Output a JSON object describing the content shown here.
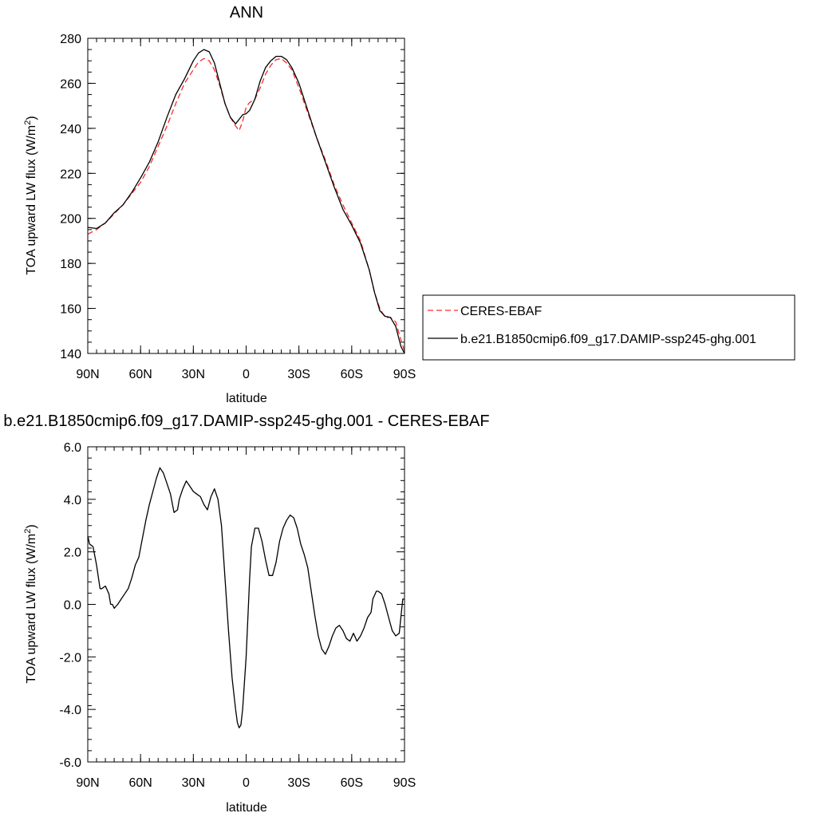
{
  "chart_data": [
    {
      "type": "line",
      "title": "ANN",
      "xlabel": "latitude",
      "ylabel": "TOA upward LW flux (W/m",
      "ylabel_sup": "2",
      "ylabel_close": ")",
      "xlim": [
        90,
        -90
      ],
      "ylim": [
        140,
        280
      ],
      "xticks": [
        {
          "value": 90,
          "label": "90N"
        },
        {
          "value": 60,
          "label": "60N"
        },
        {
          "value": 30,
          "label": "30N"
        },
        {
          "value": 0,
          "label": "0"
        },
        {
          "value": -30,
          "label": "30S"
        },
        {
          "value": -60,
          "label": "60S"
        },
        {
          "value": -90,
          "label": "90S"
        }
      ],
      "yticks": [
        {
          "value": 140,
          "label": "140"
        },
        {
          "value": 160,
          "label": "160"
        },
        {
          "value": 180,
          "label": "180"
        },
        {
          "value": 200,
          "label": "200"
        },
        {
          "value": 220,
          "label": "220"
        },
        {
          "value": 240,
          "label": "240"
        },
        {
          "value": 260,
          "label": "260"
        },
        {
          "value": 280,
          "label": "280"
        }
      ],
      "grid": false,
      "legend_position": "right",
      "series": [
        {
          "name": "CERES-EBAF",
          "color": "#ff2a2a",
          "dash": true,
          "x": [
            90,
            85,
            80,
            75,
            70,
            65,
            60,
            55,
            50,
            45,
            40,
            35,
            30,
            27,
            24,
            21,
            18,
            15,
            12,
            9,
            6,
            4,
            2,
            0,
            -2,
            -5,
            -8,
            -11,
            -14,
            -17,
            -20,
            -23,
            -26,
            -30,
            -35,
            -40,
            -45,
            -50,
            -55,
            -60,
            -65,
            -70,
            -73,
            -76,
            -79,
            -82,
            -85,
            -88,
            -90
          ],
          "y": [
            193,
            195,
            198,
            202,
            206,
            211,
            216,
            223,
            232,
            241,
            251,
            260,
            266,
            269.5,
            271,
            270,
            266,
            259,
            251,
            245,
            241,
            239,
            243,
            249.5,
            251.5,
            253,
            258,
            264,
            268,
            270.5,
            271,
            269,
            266,
            258,
            247,
            236,
            226,
            215,
            206,
            198,
            190,
            177,
            167,
            160,
            156,
            156,
            154,
            146,
            141
          ]
        },
        {
          "name": "b.e21.B1850cmip6.f09_g17.DAMIP-ssp245-ghg.001",
          "color": "#000000",
          "dash": false,
          "x": [
            90,
            85,
            80,
            75,
            70,
            65,
            60,
            55,
            50,
            45,
            40,
            35,
            30,
            27,
            24,
            21,
            18,
            15,
            12,
            9,
            6,
            4,
            2,
            0,
            -2,
            -5,
            -8,
            -11,
            -14,
            -17,
            -20,
            -23,
            -26,
            -30,
            -35,
            -40,
            -45,
            -50,
            -55,
            -60,
            -65,
            -70,
            -73,
            -76,
            -79,
            -82,
            -85,
            -88,
            -90
          ],
          "y": [
            196,
            195.5,
            198,
            202.5,
            206,
            211.5,
            218,
            225,
            234,
            245,
            255,
            262,
            270,
            273.5,
            275,
            274,
            269,
            260,
            251,
            245,
            242,
            244,
            246,
            246.5,
            248,
            253,
            261,
            267,
            270,
            272,
            272,
            270.5,
            267,
            260,
            248,
            236,
            225,
            214,
            204,
            197,
            189,
            177,
            167,
            159,
            156.5,
            156,
            152,
            143,
            140
          ]
        }
      ]
    },
    {
      "type": "line",
      "title": "b.e21.B1850cmip6.f09_g17.DAMIP-ssp245-ghg.001 - CERES-EBAF",
      "xlabel": "latitude",
      "ylabel": "TOA upward LW flux (W/m",
      "ylabel_sup": "2",
      "ylabel_close": ")",
      "xlim": [
        90,
        -90
      ],
      "ylim": [
        -6,
        6
      ],
      "xticks": [
        {
          "value": 90,
          "label": "90N"
        },
        {
          "value": 60,
          "label": "60N"
        },
        {
          "value": 30,
          "label": "30N"
        },
        {
          "value": 0,
          "label": "0"
        },
        {
          "value": -30,
          "label": "30S"
        },
        {
          "value": -60,
          "label": "60S"
        },
        {
          "value": -90,
          "label": "90S"
        }
      ],
      "yticks": [
        {
          "value": -6,
          "label": "-6.0"
        },
        {
          "value": -4,
          "label": "-4.0"
        },
        {
          "value": -2,
          "label": "-2.0"
        },
        {
          "value": 0,
          "label": "0.0"
        },
        {
          "value": 2,
          "label": "2.0"
        },
        {
          "value": 4,
          "label": "4.0"
        },
        {
          "value": 6,
          "label": "6.0"
        }
      ],
      "grid": false,
      "series": [
        {
          "color": "#000000",
          "dash": false,
          "x": [
            90,
            89,
            87,
            85,
            83,
            82,
            80,
            78,
            77,
            76,
            75,
            73,
            71,
            69,
            67,
            65,
            63,
            61,
            59,
            57,
            55,
            53,
            51,
            49,
            47,
            45,
            43,
            41,
            39,
            38,
            36,
            34,
            32,
            30,
            28,
            26,
            24,
            22,
            20,
            18,
            16,
            14,
            12,
            10,
            8,
            6,
            5,
            4,
            3,
            2,
            1,
            0,
            -1,
            -2,
            -3,
            -5,
            -7,
            -9,
            -11,
            -13,
            -15,
            -17,
            -19,
            -21,
            -23,
            -25,
            -27,
            -29,
            -31,
            -33,
            -35,
            -37,
            -39,
            -41,
            -43,
            -45,
            -47,
            -49,
            -51,
            -53,
            -55,
            -57,
            -59,
            -61,
            -63,
            -65,
            -67,
            -69,
            -71,
            -72,
            -74,
            -75,
            -77,
            -79,
            -81,
            -83,
            -85,
            -87,
            -89,
            -90
          ],
          "y": [
            2.6,
            2.3,
            2.2,
            1.5,
            0.6,
            0.6,
            0.7,
            0.4,
            0.0,
            0.0,
            -0.15,
            0.0,
            0.2,
            0.4,
            0.6,
            1.0,
            1.5,
            1.8,
            2.5,
            3.2,
            3.8,
            4.3,
            4.8,
            5.2,
            5.0,
            4.6,
            4.2,
            3.5,
            3.6,
            4.0,
            4.4,
            4.7,
            4.5,
            4.3,
            4.2,
            4.1,
            3.8,
            3.6,
            4.1,
            4.4,
            4.0,
            3.0,
            1.0,
            -1.0,
            -2.8,
            -4.0,
            -4.5,
            -4.7,
            -4.6,
            -4.0,
            -3.0,
            -2.0,
            -0.5,
            1.0,
            2.2,
            2.9,
            2.9,
            2.4,
            1.7,
            1.1,
            1.1,
            1.6,
            2.4,
            2.9,
            3.2,
            3.4,
            3.3,
            2.9,
            2.3,
            1.9,
            1.4,
            0.5,
            -0.4,
            -1.2,
            -1.7,
            -1.9,
            -1.6,
            -1.2,
            -0.9,
            -0.8,
            -1.0,
            -1.3,
            -1.4,
            -1.1,
            -1.4,
            -1.2,
            -0.9,
            -0.5,
            -0.3,
            0.2,
            0.5,
            0.5,
            0.4,
            0.0,
            -0.5,
            -1.0,
            -1.2,
            -1.1,
            0.2,
            0.2
          ]
        }
      ]
    }
  ]
}
